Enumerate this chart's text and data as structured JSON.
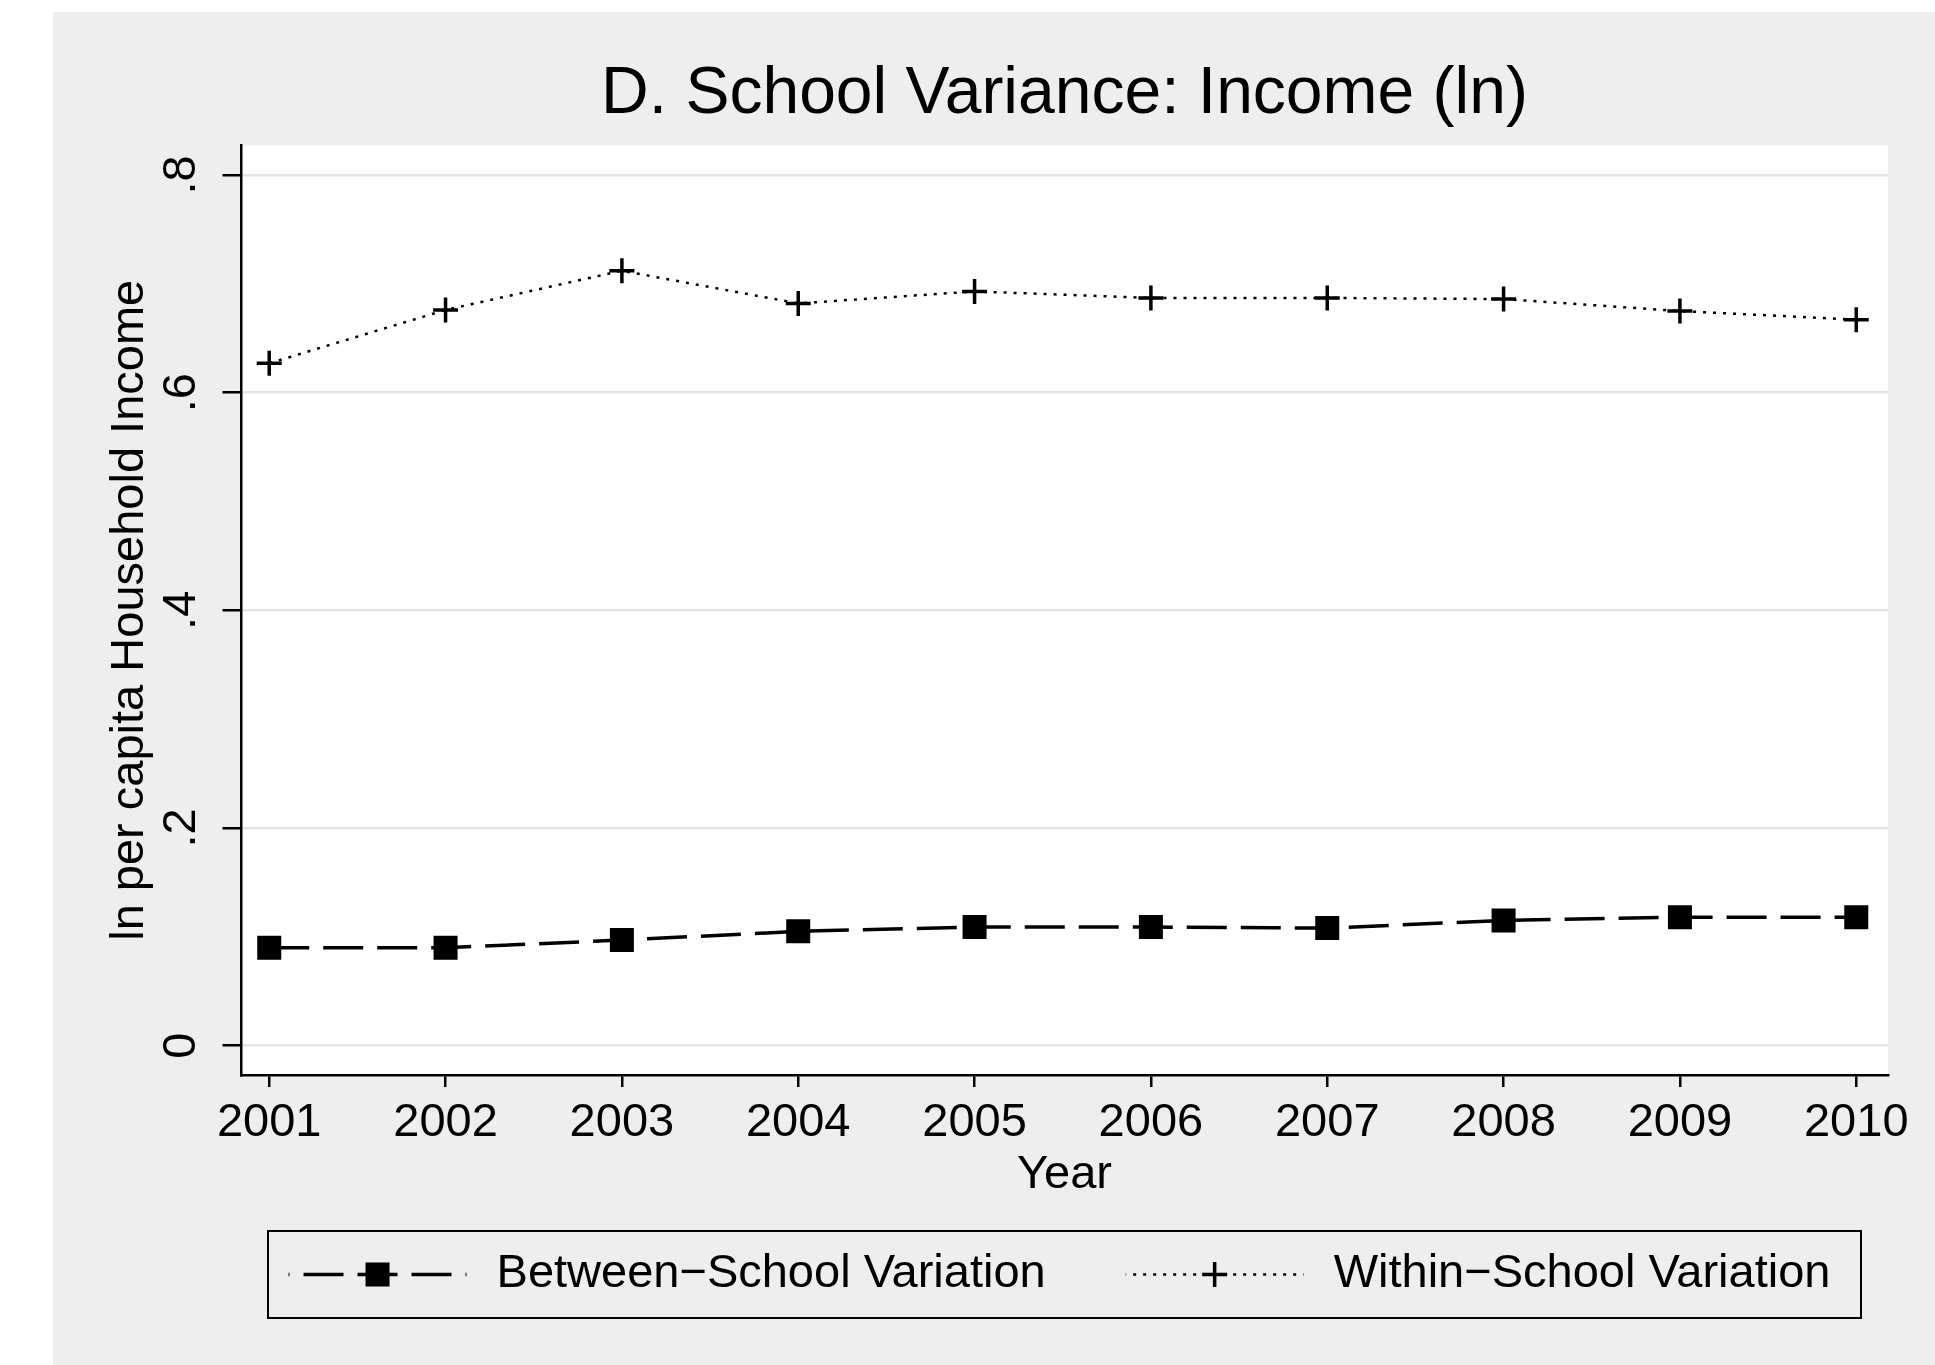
{
  "chart_data": {
    "type": "line",
    "title": "D. School Variance: Income (ln)",
    "xlabel": "Year",
    "ylabel": "ln per capita Household Income",
    "x": [
      2001,
      2002,
      2003,
      2004,
      2005,
      2006,
      2007,
      2008,
      2009,
      2010
    ],
    "series": [
      {
        "name": "Between−School Variation",
        "color": "#000000",
        "marker": "square",
        "line_style": "dashed",
        "values": [
          0.09,
          0.09,
          0.097,
          0.105,
          0.109,
          0.109,
          0.108,
          0.115,
          0.118,
          0.118
        ]
      },
      {
        "name": "Within−School Variation",
        "color": "#000000",
        "marker": "cross",
        "line_style": "dotted",
        "values": [
          0.627,
          0.676,
          0.712,
          0.682,
          0.693,
          0.687,
          0.687,
          0.686,
          0.675,
          0.667
        ]
      }
    ],
    "xlim": [
      2000.84,
      2010.18
    ],
    "xticks": [
      2001,
      2002,
      2003,
      2004,
      2005,
      2006,
      2007,
      2008,
      2009,
      2010
    ],
    "ylim": [
      -0.027,
      0.827
    ],
    "yticks": [
      0,
      {
        "value": 0.2,
        "label": ".2"
      },
      {
        "value": 0.4,
        "label": ".4"
      },
      {
        "value": 0.6,
        "label": ".6"
      },
      {
        "value": 0.8,
        "label": ".8"
      }
    ],
    "grid": "y",
    "legend": "bottom"
  }
}
